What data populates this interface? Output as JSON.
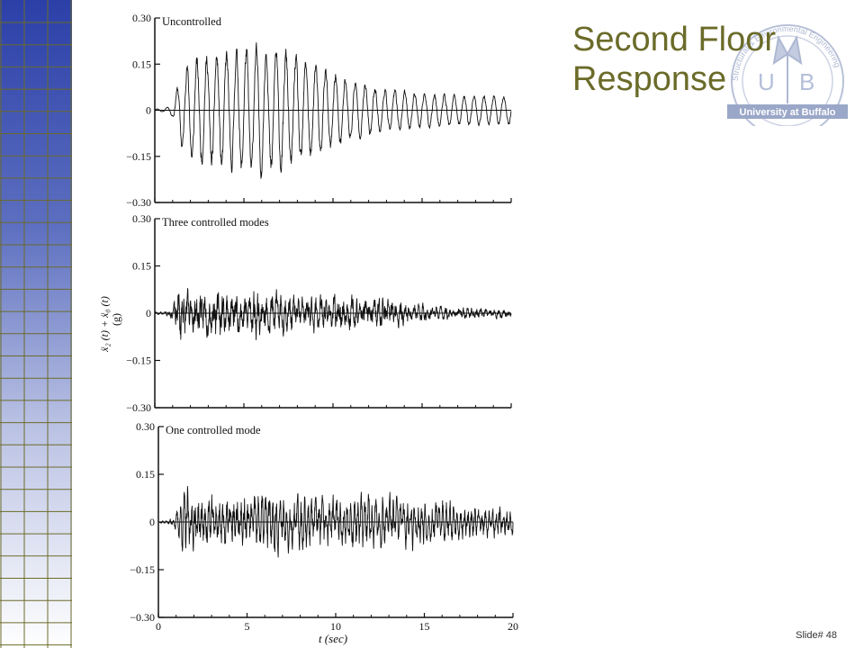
{
  "slide": {
    "title_line1": "Second Floor",
    "title_line2": "Response",
    "slide_number": "Slide# 48",
    "title_color": "#6b6b2a"
  },
  "logo": {
    "letters": [
      "U",
      "B"
    ],
    "banner_text": "University at Buffalo",
    "ring_text": "Structural & Environmental Engineering",
    "color": "#9aa7c8",
    "icon": "ub-logo-icon"
  },
  "decoration": {
    "grid_colors": {
      "top": "#2b3fa8",
      "bottom": "#ffffff",
      "line": "#6b6b2a"
    }
  },
  "chart_data": {
    "type": "line",
    "xlabel": "t (sec)",
    "ylabel": "ẍ₂(t) + ẍ₀(t) (g)",
    "ylabel_line1": "ẍ₂ (t) + ẍ₀ (t)",
    "ylabel_line2": "(g)",
    "xlim": [
      0,
      20
    ],
    "ylim": [
      -0.3,
      0.3
    ],
    "x_ticks": [
      "0",
      "5",
      "10",
      "15",
      "20"
    ],
    "y_ticks": [
      "0.30",
      "0.15",
      "0",
      "−0.15",
      "−0.30"
    ],
    "panels": [
      {
        "title": "Uncontrolled",
        "envelope_t": [
          0,
          0.5,
          1,
          1.5,
          2,
          4,
          6,
          7,
          9,
          11,
          13,
          15,
          17,
          20
        ],
        "envelope_a": [
          0.005,
          0.005,
          0.02,
          0.13,
          0.17,
          0.2,
          0.22,
          0.21,
          0.16,
          0.1,
          0.07,
          0.06,
          0.05,
          0.05
        ],
        "frequency_hz": 1.8,
        "noise": 0.12,
        "seed": 11
      },
      {
        "title": "Three controlled modes",
        "envelope_t": [
          0,
          0.5,
          1,
          1.4,
          2,
          4,
          6,
          8,
          10,
          13,
          15,
          17,
          20
        ],
        "envelope_a": [
          0.005,
          0.005,
          0.02,
          0.11,
          0.08,
          0.07,
          0.08,
          0.06,
          0.06,
          0.05,
          0.03,
          0.02,
          0.015
        ],
        "frequency_hz": 4.0,
        "noise": 0.6,
        "seed": 23
      },
      {
        "title": "One controlled mode",
        "envelope_t": [
          0,
          0.5,
          1,
          1.5,
          2,
          4,
          6,
          8,
          10,
          12,
          14,
          16,
          18,
          20
        ],
        "envelope_a": [
          0.005,
          0.005,
          0.03,
          0.11,
          0.1,
          0.09,
          0.1,
          0.09,
          0.08,
          0.09,
          0.08,
          0.07,
          0.05,
          0.05
        ],
        "frequency_hz": 5.0,
        "noise": 0.5,
        "seed": 37
      }
    ]
  }
}
